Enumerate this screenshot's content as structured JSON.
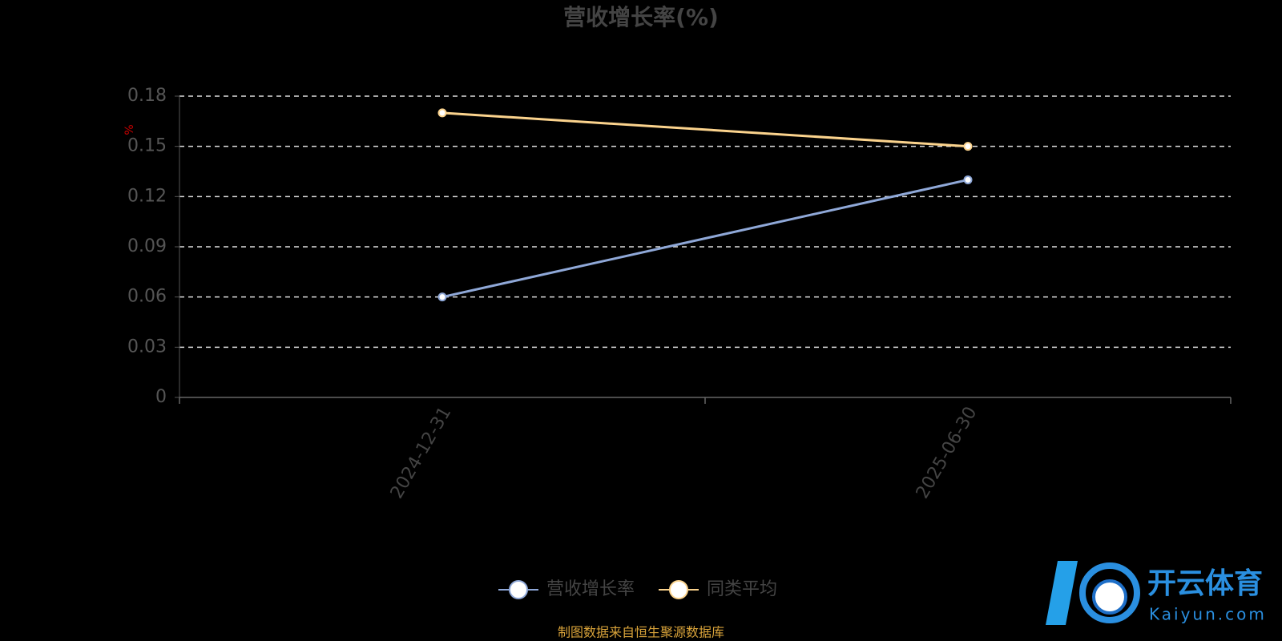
{
  "chart_data": {
    "type": "line",
    "title": "营收增长率(%)",
    "y_label": "%",
    "categories": [
      "2024-12-31",
      "2025-06-30"
    ],
    "series": [
      {
        "name": "营收增长率",
        "color": "#8fa8d8",
        "values": [
          0.06,
          0.13
        ]
      },
      {
        "name": "同类平均",
        "color": "#fbd38d",
        "values": [
          0.17,
          0.15
        ]
      }
    ],
    "ylim": [
      0,
      0.18
    ],
    "yticks": [
      0,
      0.03,
      0.06,
      0.09,
      0.12,
      0.15,
      0.18
    ],
    "grid": true,
    "legend": "bottom",
    "source": "制图数据来自恒生聚源数据库"
  },
  "watermark": {
    "name": "开云体育",
    "site": "Kaiyun.com"
  }
}
